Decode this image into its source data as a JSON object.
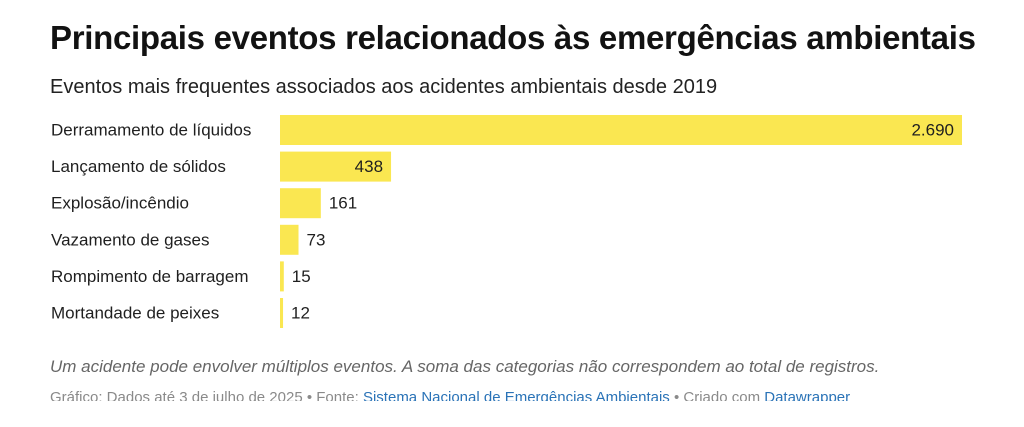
{
  "header": {
    "title": "Principais eventos relacionados às emergências ambientais",
    "subtitle": "Eventos mais frequentes associados aos acidentes ambientais desde 2019"
  },
  "colors": {
    "bar": "#fae751",
    "label": "#1f1f1f"
  },
  "chart_data": {
    "type": "bar",
    "orientation": "horizontal",
    "title": "Principais eventos relacionados às emergências ambientais",
    "subtitle": "Eventos mais frequentes associados aos acidentes ambientais desde 2019",
    "categories": [
      "Derramamento de líquidos",
      "Lançamento de sólidos",
      "Explosão/incêndio",
      "Vazamento de gases",
      "Rompimento de barragem",
      "Mortandade de peixes"
    ],
    "values": [
      2690,
      438,
      161,
      73,
      15,
      12
    ],
    "value_labels": [
      "2.690",
      "438",
      "161",
      "73",
      "15",
      "12"
    ],
    "xlim": [
      0,
      2690
    ],
    "grid": false,
    "legend": "none"
  },
  "footer": {
    "note": "Um acidente pode envolver múltiplos eventos. A soma das categorias não correspondem ao total de registros.",
    "graphic_label": "Gráfico: Dados até 3 de julho de 2025",
    "separator": " • ",
    "source_label": "Fonte: ",
    "source_link": "Sistema Nacional de Emergências Ambientais",
    "created_label": "Criado com ",
    "created_link": "Datawrapper"
  }
}
